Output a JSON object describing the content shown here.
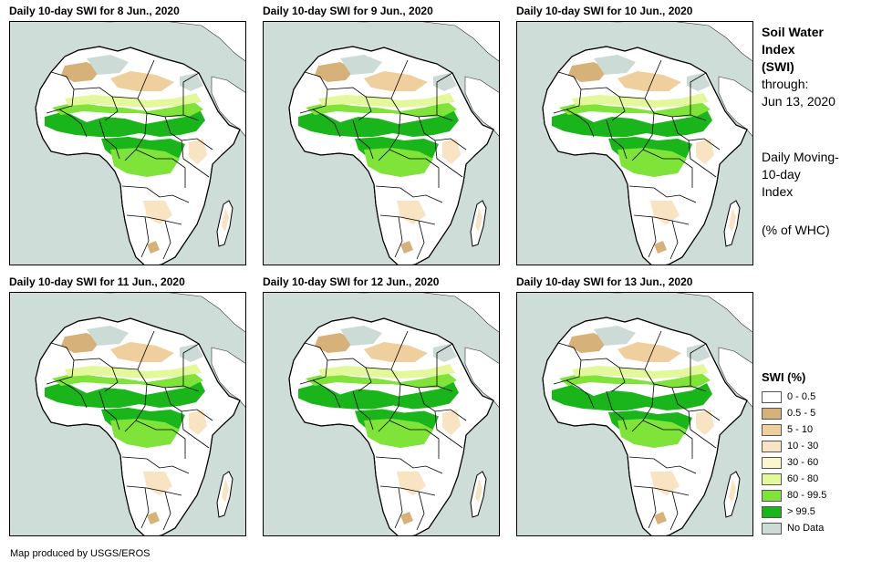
{
  "panels": [
    {
      "title": "Daily 10-day SWI for 8 Jun., 2020"
    },
    {
      "title": "Daily 10-day SWI for 9 Jun., 2020"
    },
    {
      "title": "Daily 10-day SWI for 10 Jun., 2020"
    },
    {
      "title": "Daily 10-day SWI for 11 Jun., 2020"
    },
    {
      "title": "Daily 10-day SWI for 12 Jun., 2020"
    },
    {
      "title": "Daily 10-day SWI for 13 Jun., 2020"
    }
  ],
  "side": {
    "title_lines": [
      "Soil Water",
      "Index",
      "(SWI)"
    ],
    "through_label": "through:",
    "through_date": "Jun 13, 2020",
    "desc_lines": [
      "Daily Moving-",
      "10-day",
      "Index"
    ],
    "unit": "(% of WHC)"
  },
  "legend": {
    "title": "SWI (%)",
    "items": [
      {
        "label": "0 - 0.5",
        "color": "#ffffff"
      },
      {
        "label": "0.5 - 5",
        "color": "#d6b27a"
      },
      {
        "label": "5 - 10",
        "color": "#efcf9d"
      },
      {
        "label": "10 - 30",
        "color": "#f8e3c3"
      },
      {
        "label": "30 - 60",
        "color": "#fbf6cd"
      },
      {
        "label": "60 - 80",
        "color": "#e3f79b"
      },
      {
        "label": "80 - 99.5",
        "color": "#7fe33a"
      },
      {
        "label": "> 99.5",
        "color": "#19b51a"
      },
      {
        "label": "No Data",
        "color": "#cddbd6"
      }
    ]
  },
  "credit": "Map produced by USGS/EROS",
  "colors": {
    "sea": "#cfddd8",
    "land": "#ffffff",
    "border": "#000000"
  }
}
